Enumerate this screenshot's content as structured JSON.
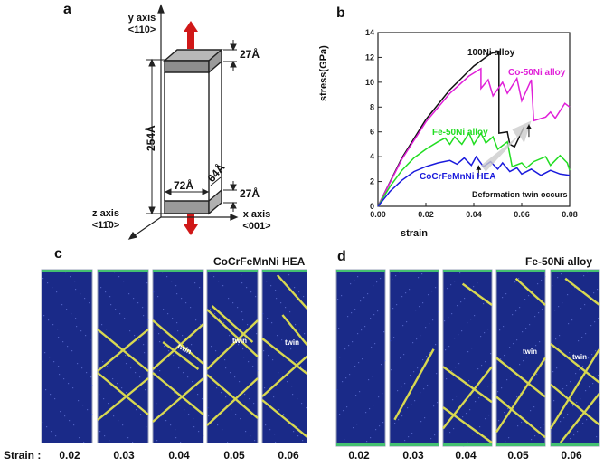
{
  "panels": {
    "a": "a",
    "b": "b",
    "c": "c",
    "d": "d"
  },
  "panel_a": {
    "y_axis": "y axis",
    "y_dir": "<110>",
    "z_axis": "z axis",
    "z_dir": "<11̄0>",
    "x_axis": "x axis",
    "x_dir": "<001>",
    "dim_top": "27Å",
    "dim_bottom": "27Å",
    "dim_height": "254Å",
    "dim_width": "72Å",
    "dim_depth": "64Å"
  },
  "chart_data": {
    "type": "line",
    "title": "",
    "xlabel": "strain",
    "ylabel": "stress(GPa)",
    "xlim": [
      0,
      0.08
    ],
    "ylim": [
      0,
      14
    ],
    "x_ticks": [
      "0.00",
      "0.02",
      "0.04",
      "0.06",
      "0.08"
    ],
    "y_ticks": [
      "0",
      "2",
      "4",
      "6",
      "8",
      "10",
      "12",
      "14"
    ],
    "annotation": "Deformation twin occurs",
    "series": [
      {
        "name": "100Ni alloy",
        "color": "#111111",
        "points": [
          [
            0,
            0
          ],
          [
            0.01,
            3.9
          ],
          [
            0.02,
            7.0
          ],
          [
            0.03,
            9.4
          ],
          [
            0.04,
            11.3
          ],
          [
            0.047,
            12.3
          ],
          [
            0.0505,
            12.5
          ],
          [
            0.0505,
            5.9
          ],
          [
            0.054,
            6.0
          ],
          [
            0.055,
            5.0
          ],
          [
            0.057,
            4.8
          ],
          [
            0.061,
            6.4
          ]
        ]
      },
      {
        "name": "Co-50Ni alloy",
        "color": "#e020d8",
        "points": [
          [
            0,
            0
          ],
          [
            0.01,
            3.8
          ],
          [
            0.02,
            6.8
          ],
          [
            0.03,
            9.1
          ],
          [
            0.038,
            10.5
          ],
          [
            0.043,
            11.1
          ],
          [
            0.043,
            9.5
          ],
          [
            0.046,
            10.2
          ],
          [
            0.048,
            8.9
          ],
          [
            0.052,
            10.0
          ],
          [
            0.054,
            9.1
          ],
          [
            0.058,
            10.3
          ],
          [
            0.06,
            8.5
          ],
          [
            0.064,
            10.2
          ],
          [
            0.065,
            6.9
          ],
          [
            0.07,
            7.2
          ],
          [
            0.072,
            7.6
          ],
          [
            0.074,
            7.1
          ],
          [
            0.078,
            8.3
          ],
          [
            0.08,
            8.0
          ]
        ]
      },
      {
        "name": "Fe-50Ni alloy",
        "color": "#22dd22",
        "points": [
          [
            0,
            0
          ],
          [
            0.005,
            1.6
          ],
          [
            0.01,
            2.9
          ],
          [
            0.015,
            3.9
          ],
          [
            0.02,
            4.6
          ],
          [
            0.025,
            5.2
          ],
          [
            0.028,
            5.5
          ],
          [
            0.03,
            5.0
          ],
          [
            0.032,
            5.6
          ],
          [
            0.035,
            5.0
          ],
          [
            0.038,
            5.9
          ],
          [
            0.04,
            5.0
          ],
          [
            0.043,
            5.9
          ],
          [
            0.045,
            5.1
          ],
          [
            0.048,
            5.6
          ],
          [
            0.05,
            4.6
          ],
          [
            0.054,
            5.2
          ],
          [
            0.056,
            3.2
          ],
          [
            0.06,
            3.5
          ],
          [
            0.062,
            3.1
          ],
          [
            0.065,
            3.6
          ],
          [
            0.07,
            4.0
          ],
          [
            0.072,
            3.3
          ],
          [
            0.076,
            4.1
          ],
          [
            0.079,
            3.5
          ],
          [
            0.08,
            2.9
          ]
        ]
      },
      {
        "name": "CoCrFeMnNi HEA",
        "color": "#1a1adc",
        "points": [
          [
            0,
            0
          ],
          [
            0.005,
            1.2
          ],
          [
            0.01,
            2.1
          ],
          [
            0.015,
            2.8
          ],
          [
            0.02,
            3.2
          ],
          [
            0.025,
            3.5
          ],
          [
            0.03,
            3.7
          ],
          [
            0.033,
            3.4
          ],
          [
            0.036,
            3.9
          ],
          [
            0.039,
            3.3
          ],
          [
            0.041,
            4.0
          ],
          [
            0.044,
            3.2
          ],
          [
            0.047,
            3.6
          ],
          [
            0.05,
            3.0
          ],
          [
            0.052,
            3.5
          ],
          [
            0.055,
            2.8
          ],
          [
            0.058,
            3.1
          ],
          [
            0.06,
            2.6
          ],
          [
            0.064,
            3.0
          ],
          [
            0.068,
            2.5
          ],
          [
            0.072,
            2.9
          ],
          [
            0.076,
            2.6
          ],
          [
            0.08,
            2.5
          ]
        ]
      }
    ]
  },
  "panel_c": {
    "title": "CoCrFeMnNi HEA",
    "strain_label": "Strain :",
    "strains": [
      "0.02",
      "0.03",
      "0.04",
      "0.05",
      "0.06"
    ],
    "twin_labels": [
      "twin",
      "twin",
      "twin"
    ]
  },
  "panel_d": {
    "title": "Fe-50Ni alloy",
    "strains": [
      "0.02",
      "0.03",
      "0.04",
      "0.05",
      "0.06"
    ],
    "twin_labels": [
      "twin",
      "twin"
    ]
  }
}
